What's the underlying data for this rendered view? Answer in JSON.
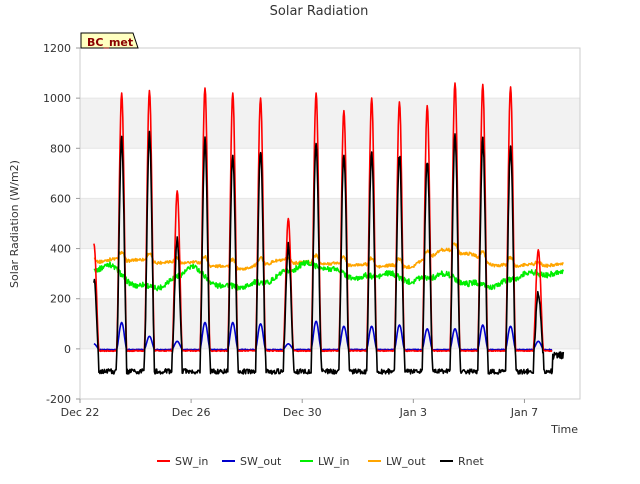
{
  "chart_data": {
    "type": "line",
    "title": "Solar Radiation",
    "xlabel": "Time",
    "ylabel": "Solar Radiation (W/m2)",
    "site_badge": "BC_met",
    "ylim": [
      -200,
      1200
    ],
    "yticks": [
      -200,
      0,
      200,
      400,
      600,
      800,
      1000,
      1200
    ],
    "xlim": [
      0,
      18
    ],
    "xticks": [
      {
        "pos": 0,
        "label": "Dec 22"
      },
      {
        "pos": 4,
        "label": "Dec 26"
      },
      {
        "pos": 8,
        "label": "Dec 30"
      },
      {
        "pos": 12,
        "label": "Jan 3"
      },
      {
        "pos": 16,
        "label": "Jan 7"
      }
    ],
    "x_unit": "days since Dec 22 00:00",
    "band_fill": "#f2f2f2",
    "legend_position": "bottom",
    "series": [
      {
        "name": "SW_in",
        "color": "#ff0000",
        "daily_peaks": [
          420,
          1020,
          1030,
          630,
          1040,
          1020,
          1000,
          520,
          1020,
          950,
          1000,
          985,
          970,
          1060,
          1055,
          1045,
          395
        ]
      },
      {
        "name": "SW_out",
        "color": "#0000cc",
        "daily_peaks": [
          20,
          105,
          50,
          30,
          105,
          105,
          100,
          20,
          110,
          90,
          90,
          95,
          80,
          80,
          95,
          90,
          30
        ]
      },
      {
        "name": "LW_in",
        "color": "#00ee00",
        "daily_levels": [
          290,
          340,
          250,
          250,
          330,
          250,
          250,
          280,
          340,
          320,
          280,
          300,
          270,
          300,
          260,
          250,
          300
        ]
      },
      {
        "name": "LW_out",
        "color": "#ffa500",
        "daily_levels": [
          340,
          355,
          355,
          345,
          345,
          330,
          320,
          350,
          345,
          340,
          335,
          330,
          330,
          395,
          380,
          330,
          335
        ]
      },
      {
        "name": "Rnet",
        "color": "#000000",
        "daily_peaks": [
          300,
          860,
          880,
          460,
          860,
          800,
          820,
          440,
          840,
          800,
          800,
          800,
          780,
          870,
          860,
          830,
          250
        ],
        "night_level": -90
      }
    ]
  }
}
